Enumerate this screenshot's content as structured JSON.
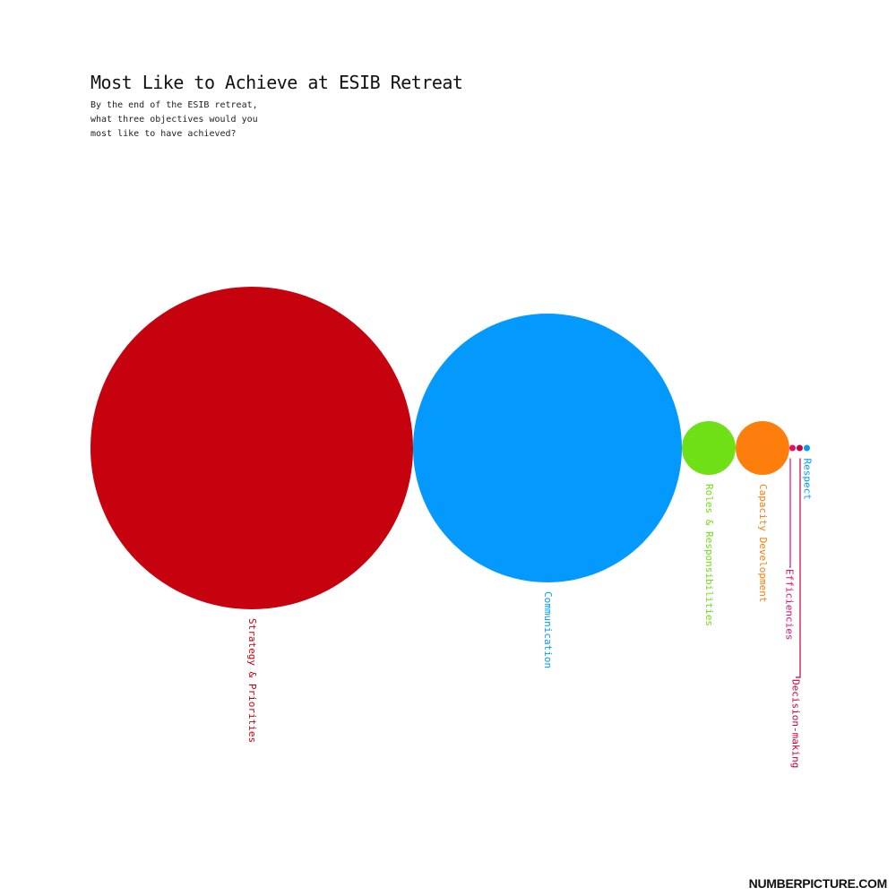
{
  "title": "Most Like to Achieve at ESIB Retreat",
  "subtitle": "By the end of the ESIB retreat, what three objectives would you most like to have achieved?",
  "credit": "NUMBERPICTURE.COM",
  "chart_data": {
    "type": "bubble",
    "title": "Most Like to Achieve at ESIB Retreat",
    "subtitle": "By the end of the ESIB retreat, what three objectives would you most like to have achieved?",
    "series": [
      {
        "name": "Strategy & Priorities",
        "value": 36,
        "color": "#c5020d"
      },
      {
        "name": "Communication",
        "value": 25,
        "color": "#0399fd"
      },
      {
        "name": "Roles & Responsibilities",
        "value": 1,
        "color": "#6fe015"
      },
      {
        "name": "Capacity Development",
        "value": 1,
        "color": "#fd7e0c"
      },
      {
        "name": "Efficiencies",
        "value": 0.01,
        "color": "#e60e6c"
      },
      {
        "name": "Decision-making",
        "value": 0.01,
        "color": "#c5023c"
      },
      {
        "name": "Respect",
        "value": 0.01,
        "color": "#0399fd"
      }
    ]
  }
}
